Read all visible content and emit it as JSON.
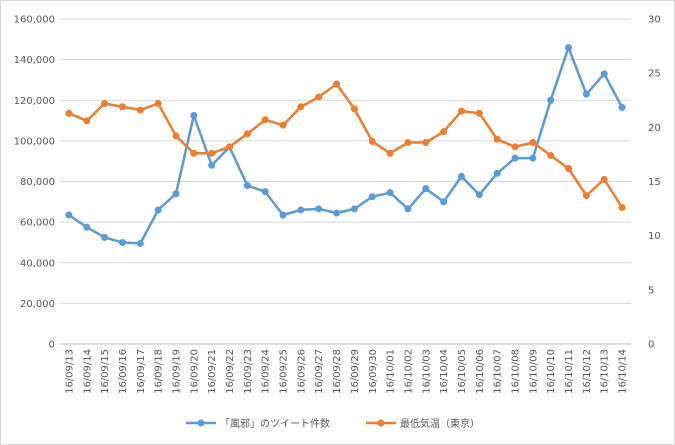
{
  "chart_data": {
    "type": "line",
    "title": "",
    "xlabel": "",
    "ylabel": "",
    "ylabel_right": "",
    "categories": [
      "16/09/13",
      "16/09/14",
      "16/09/15",
      "16/09/16",
      "16/09/17",
      "16/09/18",
      "16/09/19",
      "16/09/20",
      "16/09/21",
      "16/09/22",
      "16/09/23",
      "16/09/24",
      "16/09/25",
      "16/09/26",
      "16/09/27",
      "16/09/28",
      "16/09/29",
      "16/09/30",
      "16/10/01",
      "16/10/02",
      "16/10/03",
      "16/10/04",
      "16/10/05",
      "16/10/06",
      "16/10/07",
      "16/10/08",
      "16/10/09",
      "16/10/10",
      "16/10/11",
      "16/10/12",
      "16/10/13",
      "16/10/14"
    ],
    "ylim": [
      0,
      160000
    ],
    "y_ticks": [
      "0",
      "20,000",
      "40,000",
      "60,000",
      "80,000",
      "100,000",
      "120,000",
      "140,000",
      "160,000"
    ],
    "ylim_right": [
      0,
      30
    ],
    "y_ticks_right": [
      "0",
      "5",
      "10",
      "15",
      "20",
      "25",
      "30"
    ],
    "grid": true,
    "legend_position": "bottom",
    "series": [
      {
        "name": "「風邪」のツイート件数",
        "axis": "left",
        "color": "#5b9bd5",
        "values": [
          63500,
          57500,
          52500,
          50000,
          49500,
          66000,
          74000,
          112500,
          88000,
          97000,
          78000,
          75000,
          63500,
          66000,
          66500,
          64500,
          66500,
          72500,
          74500,
          66500,
          76500,
          70000,
          82500,
          73500,
          84000,
          91500,
          91500,
          120000,
          146000,
          123000,
          133000,
          116500
        ]
      },
      {
        "name": "最低気温（東京）",
        "axis": "right",
        "color": "#ed7d31",
        "values": [
          21.3,
          20.6,
          22.2,
          21.9,
          21.6,
          22.2,
          19.2,
          17.6,
          17.6,
          18.2,
          19.4,
          20.7,
          20.2,
          21.9,
          22.8,
          24.0,
          21.7,
          18.7,
          17.6,
          18.6,
          18.6,
          19.6,
          21.5,
          21.3,
          18.9,
          18.2,
          18.6,
          17.4,
          16.2,
          13.7,
          15.2,
          12.6
        ]
      }
    ]
  },
  "legend": {
    "items": [
      {
        "label": "「風邪」のツイート件数",
        "color": "#5b9bd5"
      },
      {
        "label": "最低気温（東京）",
        "color": "#ed7d31"
      }
    ]
  }
}
